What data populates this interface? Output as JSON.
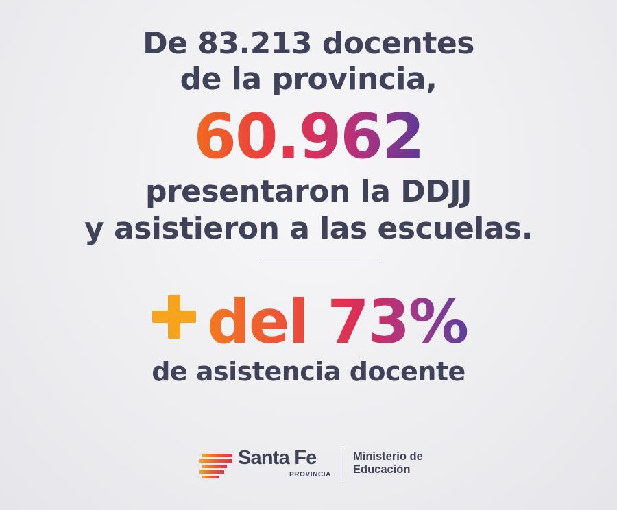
{
  "headline": {
    "line1": "De 83.213 docentes",
    "line2": "de la provincia,"
  },
  "highlight_number": "60.962",
  "statement": {
    "line1": "presentaron la DDJJ",
    "line2": "y asistieron a las escuelas."
  },
  "percent": {
    "icon": "plus-icon",
    "text": "del 73%"
  },
  "percent_caption": "de asistencia docente",
  "footer": {
    "brand_name": "Santa Fe",
    "brand_sub": "PROVINCIA",
    "ministry_line1": "Ministerio de",
    "ministry_line2": "Educación"
  },
  "colors": {
    "text": "#3f4258",
    "gradient": [
      "#f26b1d",
      "#e8334a",
      "#b8317a",
      "#5a3b9a"
    ],
    "plus": "#f6a41e"
  }
}
